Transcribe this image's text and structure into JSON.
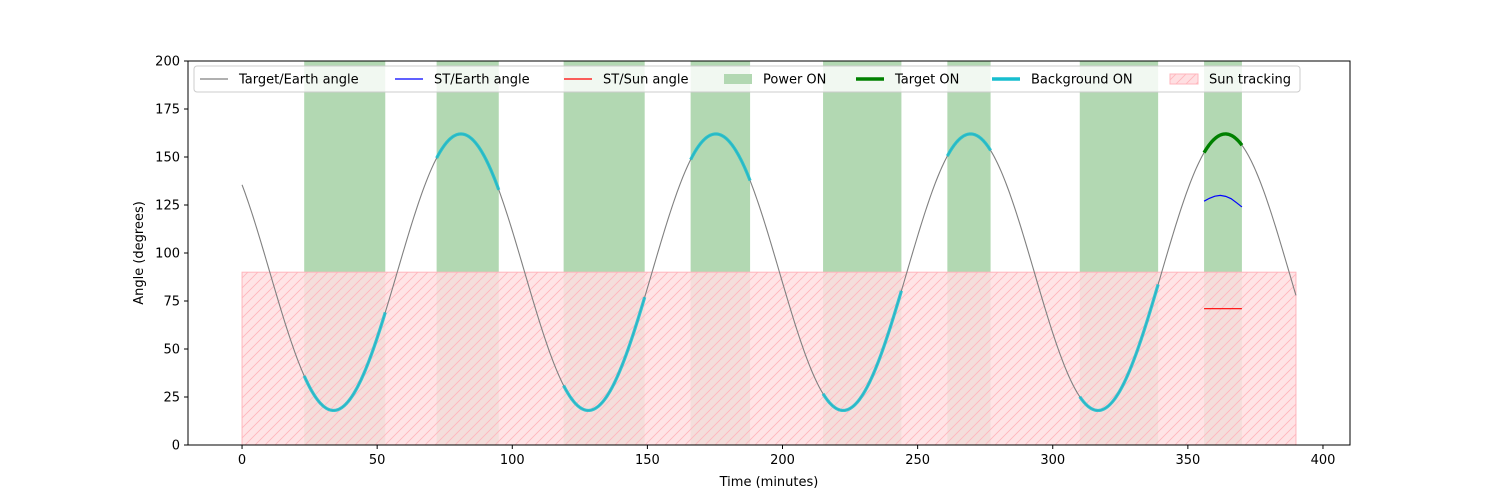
{
  "chart_data": {
    "type": "line",
    "xlabel": "Time (minutes)",
    "ylabel": "Angle (degrees)",
    "xlim": [
      -20,
      410
    ],
    "ylim": [
      0,
      200
    ],
    "xticks": [
      0,
      50,
      100,
      150,
      200,
      250,
      300,
      350,
      400
    ],
    "yticks": [
      0,
      25,
      50,
      75,
      100,
      125,
      150,
      175,
      200
    ],
    "legend_placement": "top",
    "colors": {
      "target_earth": "#808080",
      "st_earth": "#0000ff",
      "st_sun": "#ff0000",
      "power_on": "#b2d8b2",
      "target_on": "#008000",
      "background_on": "#17becf",
      "sun_tracking_fill": "#ffdfe2",
      "sun_tracking_hatch": "#ffb6bd"
    },
    "legend": [
      {
        "key": "target_earth",
        "label": "Target/Earth angle",
        "style": "line-thin"
      },
      {
        "key": "st_earth",
        "label": "ST/Earth angle",
        "style": "line-thin"
      },
      {
        "key": "st_sun",
        "label": "ST/Sun angle",
        "style": "line-thin"
      },
      {
        "key": "power_on",
        "label": "Power ON",
        "style": "patch"
      },
      {
        "key": "target_on",
        "label": "Target ON",
        "style": "line-thick"
      },
      {
        "key": "background_on",
        "label": "Background ON",
        "style": "line-thick"
      },
      {
        "key": "sun_tracking",
        "label": "Sun tracking",
        "style": "hatch-patch"
      }
    ],
    "target_earth_model": {
      "period_min": 94.3,
      "peak_time_min": 81,
      "mean_deg": 90,
      "amplitude_deg": 72,
      "t_start": 0,
      "t_end": 390
    },
    "sun_tracking": [
      {
        "start": 0,
        "end": 390,
        "angle_max": 90
      }
    ],
    "power_on_intervals": [
      {
        "start": 23,
        "end": 53
      },
      {
        "start": 72,
        "end": 95
      },
      {
        "start": 119,
        "end": 149
      },
      {
        "start": 166,
        "end": 188
      },
      {
        "start": 215,
        "end": 244
      },
      {
        "start": 261,
        "end": 277
      },
      {
        "start": 310,
        "end": 339
      },
      {
        "start": 356,
        "end": 370
      }
    ],
    "background_on_intervals": [
      {
        "start": 23,
        "end": 53
      },
      {
        "start": 72,
        "end": 95
      },
      {
        "start": 119,
        "end": 149
      },
      {
        "start": 166,
        "end": 188
      },
      {
        "start": 215,
        "end": 244
      },
      {
        "start": 261,
        "end": 277
      },
      {
        "start": 310,
        "end": 339
      }
    ],
    "target_on_intervals": [
      {
        "start": 356,
        "end": 370
      }
    ],
    "st_earth_points": [
      [
        356,
        127
      ],
      [
        358,
        128.5
      ],
      [
        360,
        129.6
      ],
      [
        362,
        130
      ],
      [
        364,
        129.5
      ],
      [
        366,
        128.3
      ],
      [
        368,
        126.2
      ],
      [
        370,
        124
      ]
    ],
    "st_sun_points": [
      [
        356,
        71
      ],
      [
        370,
        71
      ]
    ]
  }
}
